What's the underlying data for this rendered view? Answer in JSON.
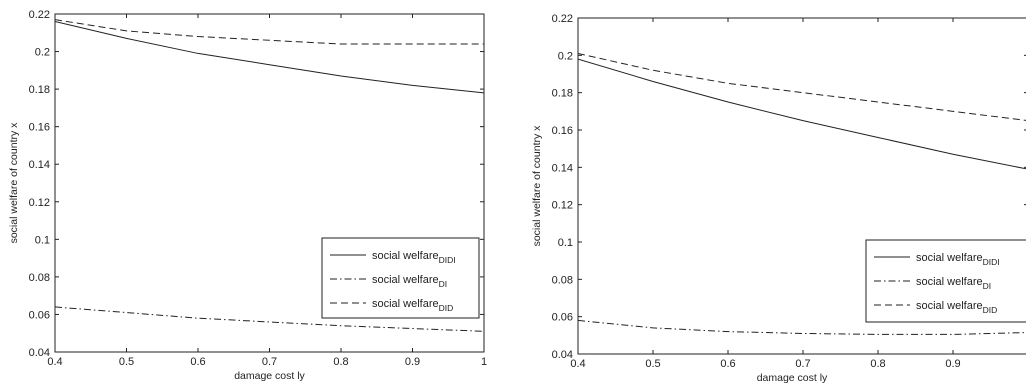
{
  "chart_data": [
    {
      "type": "line",
      "title": "",
      "xlabel": "damage cost ly",
      "ylabel": "social welfare of country x",
      "xlim": [
        0.4,
        1.0
      ],
      "ylim": [
        0.04,
        0.22
      ],
      "xticks": [
        "0.4",
        "0.5",
        "0.6",
        "0.7",
        "0.8",
        "0.9",
        "1"
      ],
      "yticks": [
        "0.04",
        "0.06",
        "0.08",
        "0.1",
        "0.12",
        "0.14",
        "0.16",
        "0.18",
        "0.2",
        "0.22"
      ],
      "grid": false,
      "legend_position": "lower-right",
      "x": [
        0.4,
        0.5,
        0.6,
        0.7,
        0.8,
        0.9,
        1.0
      ],
      "series": [
        {
          "name": "social welfare",
          "subscript": "DIDI",
          "style": "solid",
          "values": [
            0.216,
            0.207,
            0.199,
            0.193,
            0.187,
            0.182,
            0.178
          ]
        },
        {
          "name": "social welfare",
          "subscript": "DI",
          "style": "dashdot",
          "values": [
            0.064,
            0.061,
            0.058,
            0.056,
            0.054,
            0.0525,
            0.051
          ]
        },
        {
          "name": "social welfare",
          "subscript": "DID",
          "style": "dashed",
          "values": [
            0.217,
            0.211,
            0.208,
            0.206,
            0.204,
            0.204,
            0.204
          ]
        }
      ]
    },
    {
      "type": "line",
      "title": "",
      "xlabel": "damage cost ly",
      "ylabel": "social welfare of country x",
      "xlim": [
        0.4,
        1.0
      ],
      "ylim": [
        0.04,
        0.22
      ],
      "xticks": [
        "0.4",
        "0.5",
        "0.6",
        "0.7",
        "0.8",
        "0.9"
      ],
      "yticks": [
        "0.04",
        "0.06",
        "0.08",
        "0.1",
        "0.12",
        "0.14",
        "0.16",
        "0.18",
        "0.2",
        "0.22"
      ],
      "grid": false,
      "legend_position": "lower-right",
      "x": [
        0.4,
        0.5,
        0.6,
        0.7,
        0.8,
        0.9,
        1.0
      ],
      "series": [
        {
          "name": "social welfare",
          "subscript": "DIDI",
          "style": "solid",
          "values": [
            0.198,
            0.186,
            0.175,
            0.165,
            0.156,
            0.147,
            0.139
          ]
        },
        {
          "name": "social welfare",
          "subscript": "DI",
          "style": "dashdot",
          "values": [
            0.058,
            0.054,
            0.052,
            0.051,
            0.0505,
            0.0505,
            0.0515
          ]
        },
        {
          "name": "social welfare",
          "subscript": "DID",
          "style": "dashed",
          "values": [
            0.201,
            0.192,
            0.185,
            0.18,
            0.175,
            0.17,
            0.165
          ]
        }
      ]
    }
  ]
}
